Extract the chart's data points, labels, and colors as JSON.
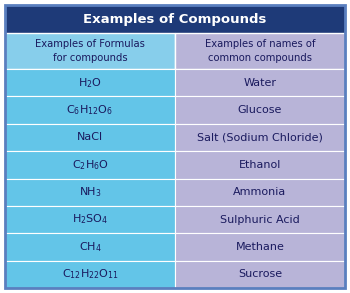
{
  "title": "Examples of Compounds",
  "title_bg": "#1e3a78",
  "title_color": "#ffffff",
  "col1_header": "Examples of Formulas\nfor compounds",
  "col2_header": "Examples of names of\ncommon compounds",
  "header_bg_left": "#87ceeb",
  "header_bg_right": "#b8b4d8",
  "row_bg_left": "#63c5e8",
  "row_bg_right": "#b8b4d8",
  "rows": [
    {
      "formula": "H$_2$O",
      "name": "Water"
    },
    {
      "formula": "C$_6$H$_{12}$O$_6$",
      "name": "Glucose"
    },
    {
      "formula": "NaCl",
      "name": "Salt (Sodium Chloride)"
    },
    {
      "formula": "C$_2$H$_6$O",
      "name": "Ethanol"
    },
    {
      "formula": "NH$_3$",
      "name": "Ammonia"
    },
    {
      "formula": "H$_2$SO$_4$",
      "name": "Sulphuric Acid"
    },
    {
      "formula": "CH$_4$",
      "name": "Methane"
    },
    {
      "formula": "C$_{12}$H$_{22}$O$_{11}$",
      "name": "Sucrose"
    }
  ],
  "text_color": "#1a1a5e",
  "border_color": "#ffffff",
  "outer_border": "#5a7fbf",
  "fig_w": 3.5,
  "fig_h": 2.93,
  "dpi": 100
}
